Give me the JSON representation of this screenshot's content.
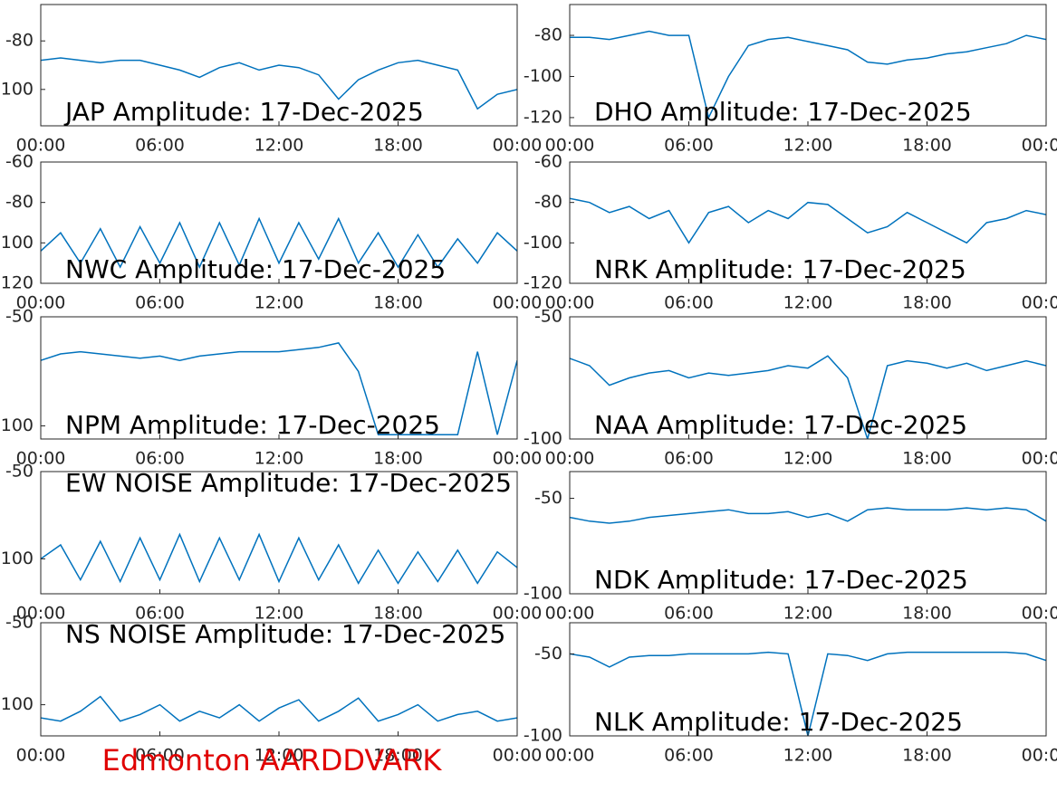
{
  "footer": "Edmonton AARDDVARK",
  "chart_data": [
    {
      "type": "line",
      "title": "JAP Amplitude: 17-Dec-2025",
      "title_position": "bottom",
      "x": [
        0,
        1,
        2,
        3,
        4,
        5,
        6,
        7,
        8,
        9,
        10,
        11,
        12,
        13,
        14,
        15,
        16,
        17,
        18,
        19,
        20,
        21,
        22,
        23,
        24
      ],
      "xlim": [
        0,
        24
      ],
      "xticks": [
        {
          "value": 0,
          "label": "00:00"
        },
        {
          "value": 6,
          "label": "06:00"
        },
        {
          "value": 12,
          "label": "12:00"
        },
        {
          "value": 18,
          "label": "18:00"
        },
        {
          "value": 24,
          "label": "00:00"
        }
      ],
      "ylim": [
        -115,
        -65
      ],
      "yticks": [
        -100,
        -80
      ],
      "series": [
        {
          "color": "#0072bd",
          "values": [
            -88,
            -87,
            -88,
            -89,
            -88,
            -88,
            -90,
            -92,
            -95,
            -91,
            -89,
            -92,
            -90,
            -91,
            -94,
            -104,
            -96,
            -92,
            -89,
            -88,
            -90,
            -92,
            -108,
            -102,
            -100
          ]
        }
      ]
    },
    {
      "type": "line",
      "title": "DHO Amplitude: 17-Dec-2025",
      "title_position": "bottom",
      "x": [
        0,
        1,
        2,
        3,
        4,
        5,
        6,
        7,
        8,
        9,
        10,
        11,
        12,
        13,
        14,
        15,
        16,
        17,
        18,
        19,
        20,
        21,
        22,
        23,
        24
      ],
      "xlim": [
        0,
        24
      ],
      "xticks": [
        {
          "value": 0,
          "label": "00:00"
        },
        {
          "value": 6,
          "label": "06:00"
        },
        {
          "value": 12,
          "label": "12:00"
        },
        {
          "value": 18,
          "label": "18:00"
        },
        {
          "value": 24,
          "label": "00:00"
        }
      ],
      "ylim": [
        -124,
        -65
      ],
      "yticks": [
        -120,
        -100,
        -80
      ],
      "series": [
        {
          "color": "#0072bd",
          "values": [
            -81,
            -81,
            -82,
            -80,
            -78,
            -80,
            -80,
            -120,
            -100,
            -85,
            -82,
            -81,
            -83,
            -85,
            -87,
            -93,
            -94,
            -92,
            -91,
            -89,
            -88,
            -86,
            -84,
            -80,
            -82
          ]
        }
      ]
    },
    {
      "type": "line",
      "title": "NWC Amplitude: 17-Dec-2025",
      "title_position": "bottom",
      "x": [
        0,
        1,
        2,
        3,
        4,
        5,
        6,
        7,
        8,
        9,
        10,
        11,
        12,
        13,
        14,
        15,
        16,
        17,
        18,
        19,
        20,
        21,
        22,
        23,
        24
      ],
      "xlim": [
        0,
        24
      ],
      "xticks": [
        {
          "value": 0,
          "label": "00:00"
        },
        {
          "value": 6,
          "label": "06:00"
        },
        {
          "value": 12,
          "label": "12:00"
        },
        {
          "value": 18,
          "label": "18:00"
        },
        {
          "value": 24,
          "label": "00:00"
        }
      ],
      "ylim": [
        -120,
        -60
      ],
      "yticks": [
        -120,
        -100,
        -80,
        -60
      ],
      "series": [
        {
          "color": "#0072bd",
          "values": [
            -104,
            -95,
            -110,
            -93,
            -112,
            -92,
            -110,
            -90,
            -112,
            -90,
            -111,
            -88,
            -110,
            -90,
            -108,
            -88,
            -110,
            -95,
            -112,
            -96,
            -112,
            -98,
            -110,
            -95,
            -104
          ]
        }
      ]
    },
    {
      "type": "line",
      "title": "NRK Amplitude: 17-Dec-2025",
      "title_position": "bottom",
      "x": [
        0,
        1,
        2,
        3,
        4,
        5,
        6,
        7,
        8,
        9,
        10,
        11,
        12,
        13,
        14,
        15,
        16,
        17,
        18,
        19,
        20,
        21,
        22,
        23,
        24
      ],
      "xlim": [
        0,
        24
      ],
      "xticks": [
        {
          "value": 0,
          "label": "00:00"
        },
        {
          "value": 6,
          "label": "06:00"
        },
        {
          "value": 12,
          "label": "12:00"
        },
        {
          "value": 18,
          "label": "18:00"
        },
        {
          "value": 24,
          "label": "00:00"
        }
      ],
      "ylim": [
        -120,
        -60
      ],
      "yticks": [
        -120,
        -100,
        -80,
        -60
      ],
      "series": [
        {
          "color": "#0072bd",
          "values": [
            -78,
            -80,
            -85,
            -82,
            -88,
            -84,
            -100,
            -85,
            -82,
            -90,
            -84,
            -88,
            -80,
            -81,
            -88,
            -95,
            -92,
            -85,
            -90,
            -95,
            -100,
            -90,
            -88,
            -84,
            -86
          ]
        }
      ]
    },
    {
      "type": "line",
      "title": "NPM Amplitude: 17-Dec-2025",
      "title_position": "bottom",
      "x": [
        0,
        1,
        2,
        3,
        4,
        5,
        6,
        7,
        8,
        9,
        10,
        11,
        12,
        13,
        14,
        15,
        16,
        17,
        18,
        19,
        20,
        21,
        22,
        23,
        24
      ],
      "xlim": [
        0,
        24
      ],
      "xticks": [
        {
          "value": 0,
          "label": "00:00"
        },
        {
          "value": 6,
          "label": "06:00"
        },
        {
          "value": 12,
          "label": "12:00"
        },
        {
          "value": 18,
          "label": "18:00"
        },
        {
          "value": 24,
          "label": "00:00"
        }
      ],
      "ylim": [
        -106,
        -50
      ],
      "yticks": [
        -100,
        -50
      ],
      "series": [
        {
          "color": "#0072bd",
          "values": [
            -70,
            -67,
            -66,
            -67,
            -68,
            -69,
            -68,
            -70,
            -68,
            -67,
            -66,
            -66,
            -66,
            -65,
            -64,
            -62,
            -75,
            -104,
            -104,
            -104,
            -104,
            -104,
            -66,
            -104,
            -70
          ]
        }
      ]
    },
    {
      "type": "line",
      "title": "NAA Amplitude: 17-Dec-2025",
      "title_position": "bottom",
      "x": [
        0,
        1,
        2,
        3,
        4,
        5,
        6,
        7,
        8,
        9,
        10,
        11,
        12,
        13,
        14,
        15,
        16,
        17,
        18,
        19,
        20,
        21,
        22,
        23,
        24
      ],
      "xlim": [
        0,
        24
      ],
      "xticks": [
        {
          "value": 0,
          "label": "00:00"
        },
        {
          "value": 6,
          "label": "06:00"
        },
        {
          "value": 12,
          "label": "12:00"
        },
        {
          "value": 18,
          "label": "18:00"
        },
        {
          "value": 24,
          "label": "00:00"
        }
      ],
      "ylim": [
        -100,
        -50
      ],
      "yticks": [
        -100,
        -50
      ],
      "series": [
        {
          "color": "#0072bd",
          "values": [
            -67,
            -70,
            -78,
            -75,
            -73,
            -72,
            -75,
            -73,
            -74,
            -73,
            -72,
            -70,
            -71,
            -66,
            -75,
            -100,
            -70,
            -68,
            -69,
            -71,
            -69,
            -72,
            -70,
            -68,
            -70
          ]
        }
      ]
    },
    {
      "type": "line",
      "title": "EW NOISE Amplitude: 17-Dec-2025",
      "title_position": "top",
      "x": [
        0,
        1,
        2,
        3,
        4,
        5,
        6,
        7,
        8,
        9,
        10,
        11,
        12,
        13,
        14,
        15,
        16,
        17,
        18,
        19,
        20,
        21,
        22,
        23,
        24
      ],
      "xlim": [
        0,
        24
      ],
      "xticks": [
        {
          "value": 0,
          "label": "00:00"
        },
        {
          "value": 6,
          "label": "06:00"
        },
        {
          "value": 12,
          "label": "12:00"
        },
        {
          "value": 18,
          "label": "18:00"
        },
        {
          "value": 24,
          "label": "00:00"
        }
      ],
      "ylim": [
        -120,
        -50
      ],
      "yticks": [
        -100,
        -50
      ],
      "series": [
        {
          "color": "#0072bd",
          "values": [
            -100,
            -92,
            -112,
            -90,
            -113,
            -88,
            -112,
            -86,
            -113,
            -88,
            -112,
            -86,
            -113,
            -88,
            -112,
            -92,
            -114,
            -95,
            -114,
            -96,
            -113,
            -95,
            -114,
            -96,
            -105
          ]
        }
      ]
    },
    {
      "type": "line",
      "title": "NDK Amplitude: 17-Dec-2025",
      "title_position": "bottom",
      "x": [
        0,
        1,
        2,
        3,
        4,
        5,
        6,
        7,
        8,
        9,
        10,
        11,
        12,
        13,
        14,
        15,
        16,
        17,
        18,
        19,
        20,
        21,
        22,
        23,
        24
      ],
      "xlim": [
        0,
        24
      ],
      "xticks": [
        {
          "value": 0,
          "label": "00:00"
        },
        {
          "value": 6,
          "label": "06:00"
        },
        {
          "value": 12,
          "label": "12:00"
        },
        {
          "value": 18,
          "label": "18:00"
        },
        {
          "value": 24,
          "label": "00:00"
        }
      ],
      "ylim": [
        -100,
        -36
      ],
      "yticks": [
        -100,
        -50
      ],
      "series": [
        {
          "color": "#0072bd",
          "values": [
            -60,
            -62,
            -63,
            -62,
            -60,
            -59,
            -58,
            -57,
            -56,
            -58,
            -58,
            -57,
            -60,
            -58,
            -62,
            -56,
            -55,
            -56,
            -56,
            -56,
            -55,
            -56,
            -55,
            -56,
            -62
          ]
        }
      ]
    },
    {
      "type": "line",
      "title": "NS NOISE Amplitude: 17-Dec-2025",
      "title_position": "top",
      "x": [
        0,
        1,
        2,
        3,
        4,
        5,
        6,
        7,
        8,
        9,
        10,
        11,
        12,
        13,
        14,
        15,
        16,
        17,
        18,
        19,
        20,
        21,
        22,
        23,
        24
      ],
      "xlim": [
        0,
        24
      ],
      "xticks": [
        {
          "value": 0,
          "label": "00:00"
        },
        {
          "value": 6,
          "label": "06:00"
        },
        {
          "value": 12,
          "label": "12:00"
        },
        {
          "value": 18,
          "label": "18:00"
        },
        {
          "value": 24,
          "label": "00:00"
        }
      ],
      "ylim": [
        -119,
        -50
      ],
      "yticks": [
        -100,
        -50
      ],
      "series": [
        {
          "color": "#0072bd",
          "values": [
            -108,
            -110,
            -104,
            -95,
            -110,
            -106,
            -100,
            -110,
            -104,
            -108,
            -100,
            -110,
            -102,
            -97,
            -110,
            -104,
            -96,
            -110,
            -106,
            -100,
            -110,
            -106,
            -104,
            -110,
            -108
          ]
        }
      ]
    },
    {
      "type": "line",
      "title": "NLK Amplitude: 17-Dec-2025",
      "title_position": "bottom",
      "x": [
        0,
        1,
        2,
        3,
        4,
        5,
        6,
        7,
        8,
        9,
        10,
        11,
        12,
        13,
        14,
        15,
        16,
        17,
        18,
        19,
        20,
        21,
        22,
        23,
        24
      ],
      "xlim": [
        0,
        24
      ],
      "xticks": [
        {
          "value": 0,
          "label": "00:00"
        },
        {
          "value": 6,
          "label": "06:00"
        },
        {
          "value": 12,
          "label": "12:00"
        },
        {
          "value": 18,
          "label": "18:00"
        },
        {
          "value": 24,
          "label": "00:00"
        }
      ],
      "ylim": [
        -100,
        -31
      ],
      "yticks": [
        -100,
        -50
      ],
      "series": [
        {
          "color": "#0072bd",
          "values": [
            -50,
            -52,
            -58,
            -52,
            -51,
            -51,
            -50,
            -50,
            -50,
            -50,
            -49,
            -50,
            -100,
            -50,
            -51,
            -54,
            -50,
            -49,
            -49,
            -49,
            -49,
            -49,
            -49,
            -50,
            -54
          ]
        }
      ]
    }
  ]
}
